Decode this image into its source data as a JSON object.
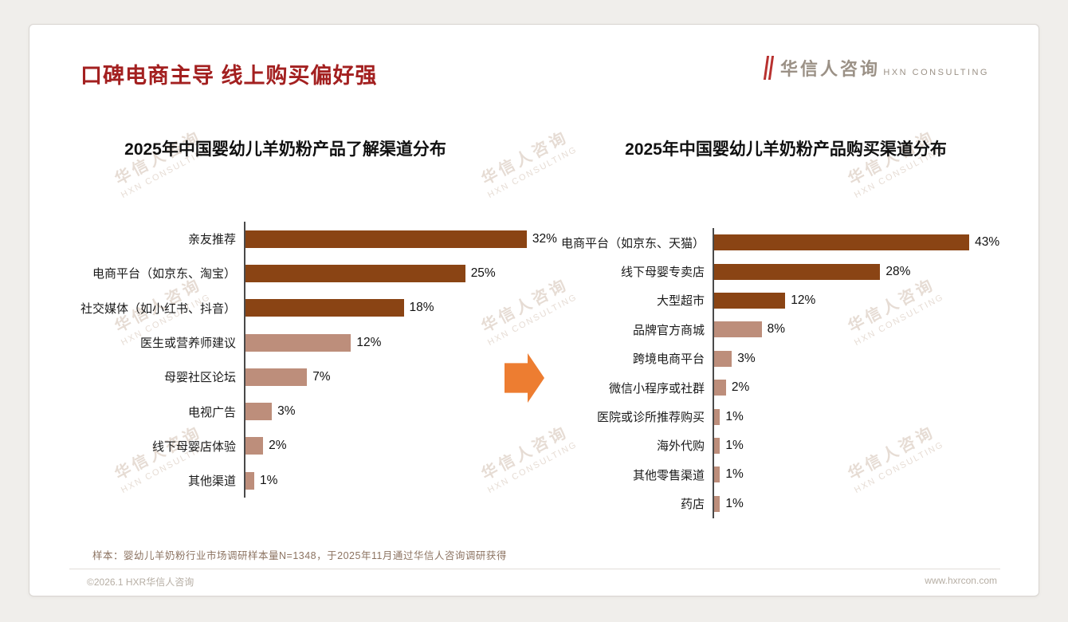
{
  "slide": {
    "title": "口碑电商主导 线上购买偏好强",
    "logo": {
      "cn": "华信人咨询",
      "en": "HXN CONSULTING"
    },
    "watermark": {
      "cn": "华信人咨询",
      "en": "HXN CONSULTING"
    },
    "footnote": "样本：婴幼儿羊奶粉行业市场调研样本量N=1348，于2025年11月通过华信人咨询调研获得",
    "footer": {
      "left": "©2026.1 HXR华信人咨询",
      "right": "www.hxrcon.com"
    }
  },
  "colors": {
    "title_red": "#a32020",
    "bar_dark": "#8a4414",
    "bar_light": "#bd8e7b",
    "arrow_orange": "#ed7d31"
  },
  "chart_data": [
    {
      "type": "bar",
      "orientation": "horizontal",
      "title": "2025年中国婴幼儿羊奶粉产品了解渠道分布",
      "unit": "%",
      "categories": [
        "亲友推荐",
        "电商平台（如京东、淘宝）",
        "社交媒体（如小红书、抖音）",
        "医生或营养师建议",
        "母婴社区论坛",
        "电视广告",
        "线下母婴店体验",
        "其他渠道"
      ],
      "values": [
        32,
        25,
        18,
        12,
        7,
        3,
        2,
        1
      ],
      "dark_bar_count": 3,
      "xlim": [
        0,
        34
      ],
      "grid": false,
      "legend": false
    },
    {
      "type": "bar",
      "orientation": "horizontal",
      "title": "2025年中国婴幼儿羊奶粉产品购买渠道分布",
      "unit": "%",
      "categories": [
        "电商平台（如京东、天猫）",
        "线下母婴专卖店",
        "大型超市",
        "品牌官方商城",
        "跨境电商平台",
        "微信小程序或社群",
        "医院或诊所推荐购买",
        "海外代购",
        "其他零售渠道",
        "药店"
      ],
      "values": [
        43,
        28,
        12,
        8,
        3,
        2,
        1,
        1,
        1,
        1
      ],
      "dark_bar_count": 3,
      "xlim": [
        0,
        45
      ],
      "grid": false,
      "legend": false
    }
  ]
}
